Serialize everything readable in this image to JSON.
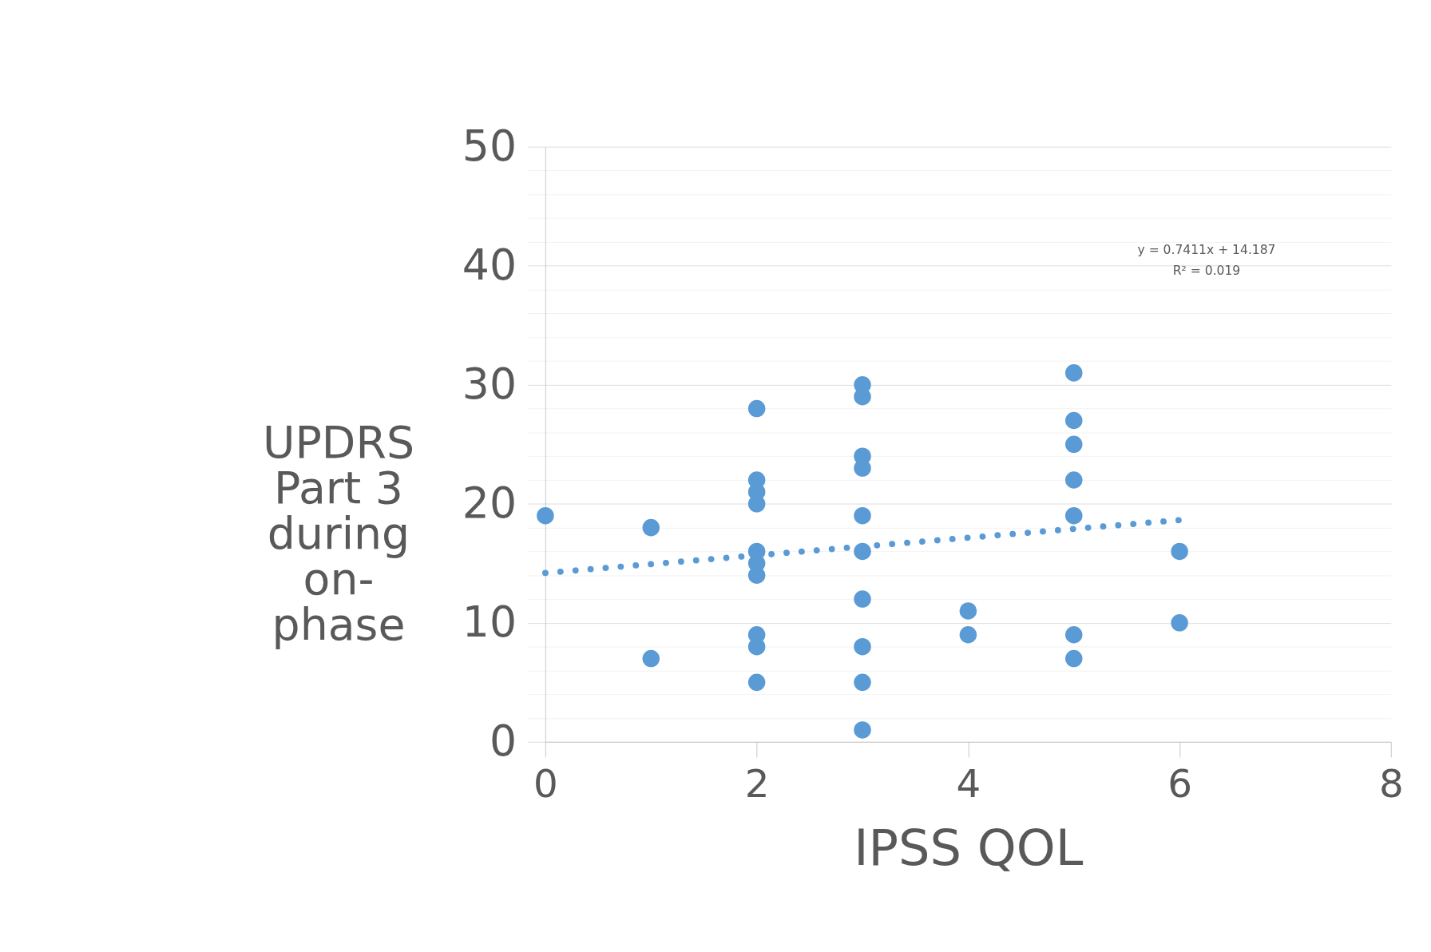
{
  "chart_data": {
    "type": "scatter",
    "xlabel": "IPSS QOL",
    "ylabel": "UPDRS Part 3 during on-phase",
    "x": [
      0,
      1,
      1,
      2,
      2,
      2,
      2,
      2,
      2,
      2,
      2,
      2,
      2,
      3,
      3,
      3,
      3,
      3,
      3,
      3,
      3,
      3,
      3,
      4,
      4,
      5,
      5,
      5,
      5,
      5,
      5,
      5,
      6,
      6
    ],
    "series": [
      {
        "type": "scatter",
        "color": "#5b9bd5",
        "marker": "circle",
        "values": [
          19,
          18,
          7,
          28,
          22,
          21,
          20,
          16,
          15,
          14,
          9,
          8,
          5,
          30,
          29,
          24,
          23,
          19,
          16,
          12,
          8,
          5,
          1,
          11,
          9,
          31,
          27,
          25,
          22,
          19,
          9,
          7,
          16,
          10
        ]
      },
      {
        "type": "line",
        "color": "#5b9bd5",
        "line_style": "dotted",
        "x": [
          0,
          6
        ],
        "values": [
          14.19,
          18.63
        ]
      }
    ],
    "xlim": [
      0,
      8
    ],
    "xticks": [
      0,
      2,
      4,
      6,
      8
    ],
    "ylim": [
      0,
      50
    ],
    "yticks": [
      0,
      {
        "value": 2,
        "label": null
      },
      {
        "value": 4,
        "label": null
      },
      {
        "value": 6,
        "label": null
      },
      {
        "value": 8,
        "label": null
      },
      10,
      {
        "value": 12,
        "label": null
      },
      {
        "value": 14,
        "label": null
      },
      {
        "value": 16,
        "label": null
      },
      {
        "value": 18,
        "label": null
      },
      20,
      {
        "value": 22,
        "label": null
      },
      {
        "value": 24,
        "label": null
      },
      {
        "value": 26,
        "label": null
      },
      {
        "value": 28,
        "label": null
      },
      30,
      {
        "value": 32,
        "label": null
      },
      {
        "value": 34,
        "label": null
      },
      {
        "value": 36,
        "label": null
      },
      {
        "value": 38,
        "label": null
      },
      40,
      {
        "value": 42,
        "label": null
      },
      {
        "value": 44,
        "label": null
      },
      {
        "value": 46,
        "label": null
      },
      {
        "value": 48,
        "label": null
      },
      50
    ],
    "grid": "y",
    "legend": false,
    "annotations": [
      "y = 0.7411x + 14.187",
      "R² = 0.019"
    ]
  }
}
